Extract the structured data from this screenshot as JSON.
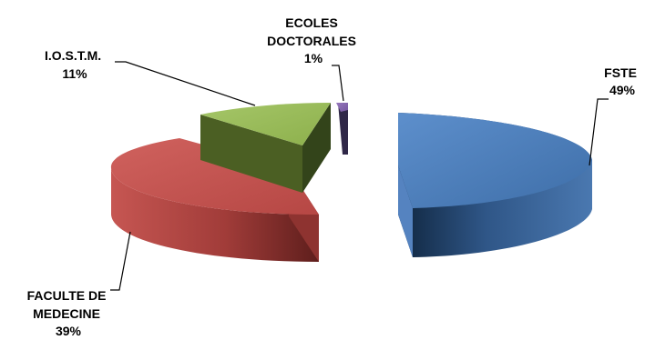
{
  "chart_data": {
    "type": "pie",
    "style": "exploded 3D pie",
    "title": "",
    "legend": "none",
    "slices": [
      {
        "label_lines": [
          "FSTE"
        ],
        "percent_label": "49%",
        "value": 49,
        "color": "#4A7EBB"
      },
      {
        "label_lines": [
          "ECOLES",
          "DOCTORALES"
        ],
        "percent_label": "1%",
        "value": 1,
        "color": "#8064A2"
      },
      {
        "label_lines": [
          "I.O.S.T.M."
        ],
        "percent_label": "11%",
        "value": 11,
        "color": "#9BBB59"
      },
      {
        "label_lines": [
          "FACULTE DE",
          "MEDECINE"
        ],
        "percent_label": "39%",
        "value": 39,
        "color": "#C0504D"
      }
    ]
  }
}
